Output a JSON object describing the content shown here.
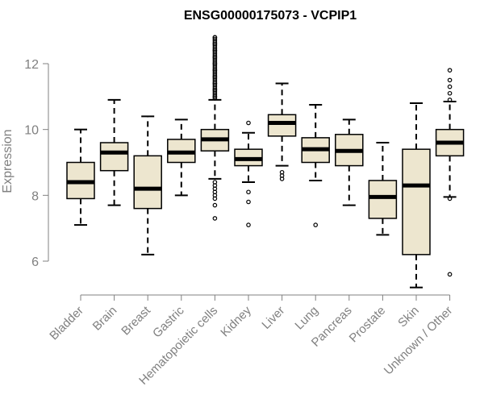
{
  "chart_data": {
    "type": "boxplot",
    "title": "ENSG00000175073 - VCPIP1",
    "xlabel": "",
    "ylabel": "Expression",
    "ylim": [
      5.0,
      13.0
    ],
    "yticks": [
      6,
      8,
      10,
      12
    ],
    "categories": [
      "Bladder",
      "Brain",
      "Breast",
      "Gastric",
      "Hematopoietic cells",
      "Kidney",
      "Liver",
      "Lung",
      "Pancreas",
      "Prostate",
      "Skin",
      "Unknown / Other"
    ],
    "boxes": [
      {
        "label": "Bladder",
        "min": 7.1,
        "q1": 7.9,
        "median": 8.4,
        "q3": 9.0,
        "max": 10.0,
        "outliers": []
      },
      {
        "label": "Brain",
        "min": 7.7,
        "q1": 8.75,
        "median": 9.3,
        "q3": 9.6,
        "max": 10.9,
        "outliers": []
      },
      {
        "label": "Breast",
        "min": 6.2,
        "q1": 7.6,
        "median": 8.2,
        "q3": 9.2,
        "max": 10.4,
        "outliers": []
      },
      {
        "label": "Gastric",
        "min": 8.0,
        "q1": 9.0,
        "median": 9.3,
        "q3": 9.7,
        "max": 10.3,
        "outliers": []
      },
      {
        "label": "Hematopoietic cells",
        "min": 8.5,
        "q1": 9.35,
        "median": 9.7,
        "q3": 10.0,
        "max": 10.9,
        "outliers": [
          7.3,
          7.7,
          7.9,
          8.0,
          8.1,
          8.2,
          8.3,
          8.4,
          11.0,
          11.2,
          11.4,
          11.6,
          11.8,
          12.0,
          12.2,
          12.4,
          12.6,
          12.8
        ]
      },
      {
        "label": "Kidney",
        "min": 8.4,
        "q1": 8.9,
        "median": 9.1,
        "q3": 9.4,
        "max": 9.9,
        "outliers": [
          7.1,
          7.8,
          8.1,
          10.2
        ]
      },
      {
        "label": "Liver",
        "min": 8.9,
        "q1": 9.8,
        "median": 10.2,
        "q3": 10.45,
        "max": 11.4,
        "outliers": [
          8.5,
          8.6,
          8.7
        ]
      },
      {
        "label": "Lung",
        "min": 8.45,
        "q1": 9.0,
        "median": 9.4,
        "q3": 9.75,
        "max": 10.75,
        "outliers": [
          7.1
        ]
      },
      {
        "label": "Pancreas",
        "min": 7.7,
        "q1": 8.9,
        "median": 9.35,
        "q3": 9.85,
        "max": 10.3,
        "outliers": []
      },
      {
        "label": "Prostate",
        "min": 6.8,
        "q1": 7.3,
        "median": 7.95,
        "q3": 8.45,
        "max": 9.6,
        "outliers": []
      },
      {
        "label": "Skin",
        "min": 5.2,
        "q1": 6.2,
        "median": 8.3,
        "q3": 9.4,
        "max": 10.8,
        "outliers": []
      },
      {
        "label": "Unknown / Other",
        "min": 7.95,
        "q1": 9.2,
        "median": 9.6,
        "q3": 10.0,
        "max": 10.85,
        "outliers": [
          5.6,
          7.9,
          10.9,
          11.1,
          11.3,
          11.5,
          11.8
        ]
      }
    ],
    "colors": {
      "box_fill": "#ede6cf",
      "stroke": "#000000",
      "axis": "#808080"
    }
  }
}
